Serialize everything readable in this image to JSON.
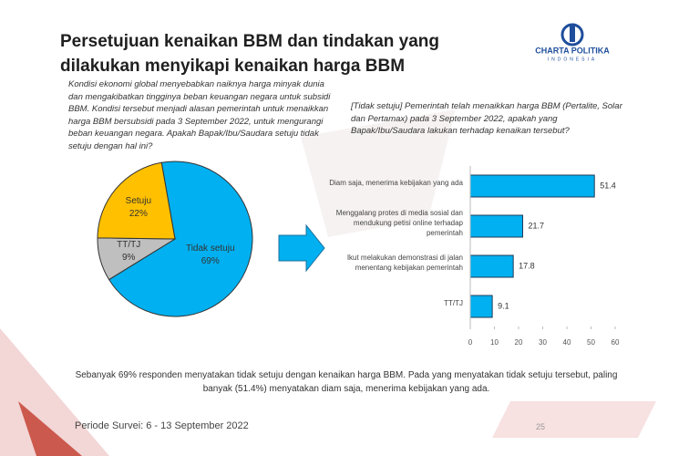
{
  "slide": {
    "title": "Persetujuan kenaikan BBM dan tindakan yang dilakukan menyikapi kenaikan harga BBM",
    "logo": "CHARTA POLITIKA",
    "logo_sub": "INDONESIA",
    "summary": "Sebanyak 69% responden menyatakan tidak setuju dengan kenaikan harga BBM. Pada yang menyatakan tidak setuju tersebut, paling banyak (51.4%) menyatakan diam saja, menerima kebijakan yang ada.",
    "footer": "Periode Survei: 6 - 13 September 2022",
    "page": "25"
  },
  "chart_data": [
    {
      "type": "pie",
      "subtitle": "Kondisi ekonomi global menyebabkan naiknya harga minyak dunia dan mengakibatkan tingginya beban keuangan negara untuk subsidi BBM. Kondisi tersebut menjadi alasan pemerintah untuk menaikkan harga BBM bersubsidi pada 3 September 2022, untuk mengurangi beban keuangan negara. Apakah Bapak/Ibu/Saudara setuju tidak setuju dengan hal ini?",
      "categories": [
        "Tidak setuju",
        "TT/TJ",
        "Setuju"
      ],
      "values": [
        69,
        9,
        22
      ],
      "value_labels": [
        "69%",
        "9%",
        "22%"
      ],
      "colors": [
        "#00b0f0",
        "#bfbfbf",
        "#ffc000"
      ]
    },
    {
      "type": "bar",
      "orientation": "horizontal",
      "subtitle": "[Tidak setuju] Pemerintah telah menaikkan harga BBM (Pertalite, Solar dan Pertamax) pada 3 September 2022, apakah yang Bapak/Ibu/Saudara lakukan terhadap kenaikan tersebut?",
      "categories": [
        "Diam saja, menerima kebijakan yang ada",
        "Menggalang protes di media sosial dan mendukung petisi online terhadap pemerintah",
        "Ikut melakukan demonstrasi di jalan menentang kebijakan pemerintah",
        "TT/TJ"
      ],
      "values": [
        51.4,
        21.7,
        17.8,
        9.1
      ],
      "color": "#00b0f0",
      "xlim": [
        0,
        60
      ],
      "xticks": [
        0,
        10,
        20,
        30,
        40,
        50,
        60
      ]
    }
  ]
}
